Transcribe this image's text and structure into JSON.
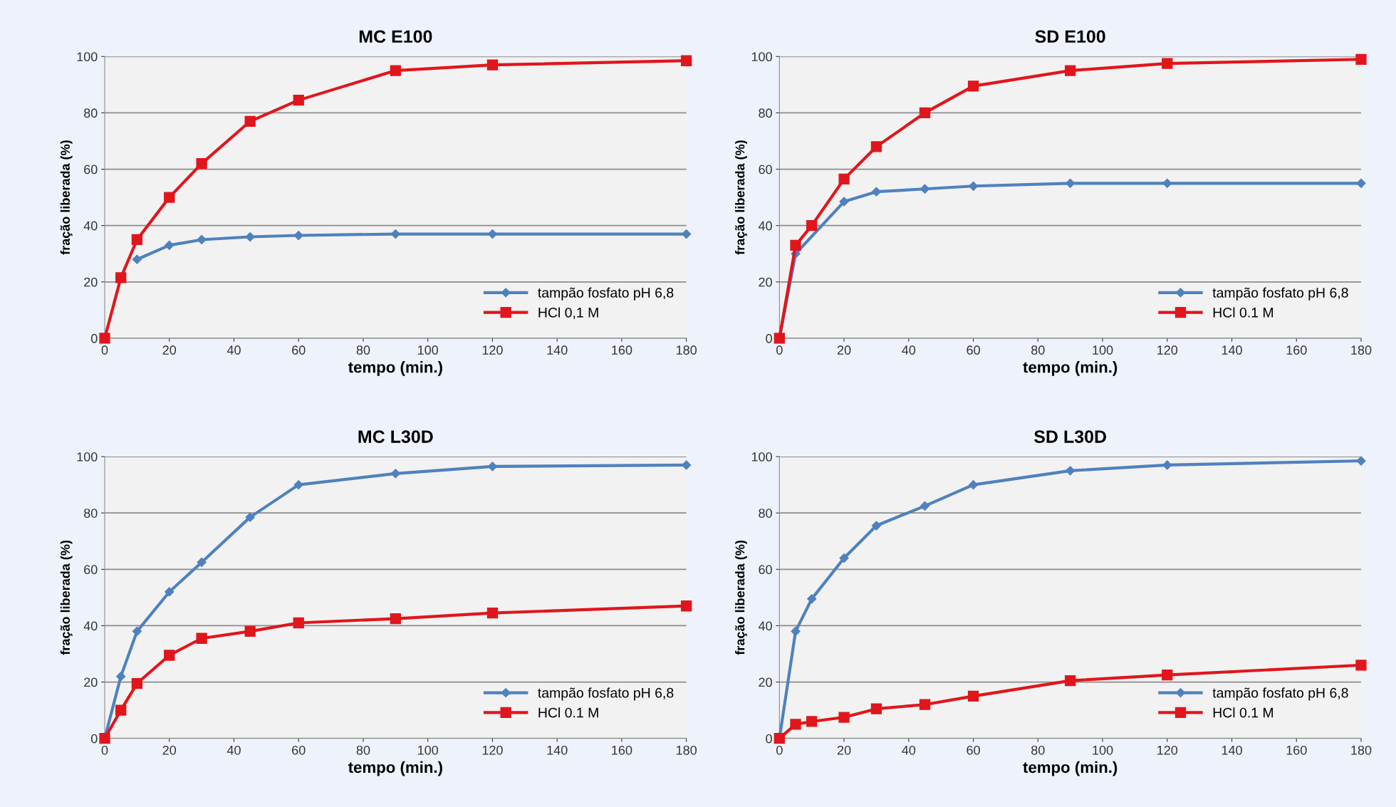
{
  "chart_data": [
    {
      "type": "line",
      "title": "MC E100",
      "xlabel": "tempo (min.)",
      "ylabel": "fração liberada (%)",
      "x": [
        0,
        5,
        10,
        20,
        30,
        45,
        60,
        90,
        120,
        180
      ],
      "xlim": [
        0,
        180
      ],
      "xticks": [
        0,
        20,
        40,
        60,
        80,
        100,
        120,
        140,
        160,
        180
      ],
      "ylim": [
        0,
        100
      ],
      "yticks": [
        0,
        20,
        40,
        60,
        80,
        100
      ],
      "grid": "y",
      "legend": "bottom right",
      "series": [
        {
          "name": "tampão fosfato pH 6,8",
          "color": "#4f81bd",
          "marker": "diamond",
          "values": [
            null,
            null,
            28,
            33,
            35,
            36,
            36.5,
            37,
            37,
            37
          ]
        },
        {
          "name": "HCl 0,1 M",
          "color": "#e0161c",
          "marker": "square",
          "values": [
            0,
            21.5,
            35,
            50,
            62,
            77,
            84.5,
            95,
            97,
            98.5
          ]
        }
      ]
    },
    {
      "type": "line",
      "title": "SD E100",
      "xlabel": "tempo (min.)",
      "ylabel": "fração liberada (%)",
      "x": [
        0,
        5,
        10,
        20,
        30,
        45,
        60,
        90,
        120,
        180
      ],
      "xlim": [
        0,
        180
      ],
      "xticks": [
        0,
        20,
        40,
        60,
        80,
        100,
        120,
        140,
        160,
        180
      ],
      "ylim": [
        0,
        100
      ],
      "yticks": [
        0,
        20,
        40,
        60,
        80,
        100
      ],
      "grid": "y",
      "legend": "bottom right",
      "series": [
        {
          "name": "tampão fosfato pH 6,8",
          "color": "#4f81bd",
          "marker": "diamond",
          "values": [
            0,
            30,
            null,
            48.5,
            52,
            53,
            54,
            55,
            55,
            55
          ]
        },
        {
          "name": "HCl 0.1 M",
          "color": "#e0161c",
          "marker": "square",
          "values": [
            0,
            33,
            40,
            56.5,
            68,
            80,
            89.5,
            95,
            97.5,
            99
          ]
        }
      ]
    },
    {
      "type": "line",
      "title": "MC L30D",
      "xlabel": "tempo (min.)",
      "ylabel": "fração liberada (%)",
      "x": [
        0,
        5,
        10,
        20,
        30,
        45,
        60,
        90,
        120,
        180
      ],
      "xlim": [
        0,
        180
      ],
      "xticks": [
        0,
        20,
        40,
        60,
        80,
        100,
        120,
        140,
        160,
        180
      ],
      "ylim": [
        0,
        100
      ],
      "yticks": [
        0,
        20,
        40,
        60,
        80,
        100
      ],
      "grid": "y",
      "legend": "bottom right",
      "series": [
        {
          "name": "tampão fosfato pH 6,8",
          "color": "#4f81bd",
          "marker": "diamond",
          "values": [
            0,
            22,
            38,
            52,
            62.5,
            78.5,
            90,
            94,
            96.5,
            97
          ]
        },
        {
          "name": "HCl 0.1 M",
          "color": "#e0161c",
          "marker": "square",
          "values": [
            0,
            10,
            19.5,
            29.5,
            35.5,
            38,
            41,
            42.5,
            44.5,
            47
          ]
        }
      ]
    },
    {
      "type": "line",
      "title": "SD L30D",
      "xlabel": "tempo (min.)",
      "ylabel": "fração liberada (%)",
      "x": [
        0,
        5,
        10,
        20,
        30,
        45,
        60,
        90,
        120,
        180
      ],
      "xlim": [
        0,
        180
      ],
      "xticks": [
        0,
        20,
        40,
        60,
        80,
        100,
        120,
        140,
        160,
        180
      ],
      "ylim": [
        0,
        100
      ],
      "yticks": [
        0,
        20,
        40,
        60,
        80,
        100
      ],
      "grid": "y",
      "legend": "bottom right",
      "series": [
        {
          "name": "tampão fosfato pH 6,8",
          "color": "#4f81bd",
          "marker": "diamond",
          "values": [
            0,
            38,
            49.5,
            64,
            75.5,
            82.5,
            90,
            95,
            97,
            98.5
          ]
        },
        {
          "name": "HCl 0.1 M",
          "color": "#e0161c",
          "marker": "square",
          "values": [
            0,
            5,
            6,
            7.5,
            10.5,
            12,
            15,
            20.5,
            22.5,
            26
          ]
        }
      ]
    }
  ]
}
